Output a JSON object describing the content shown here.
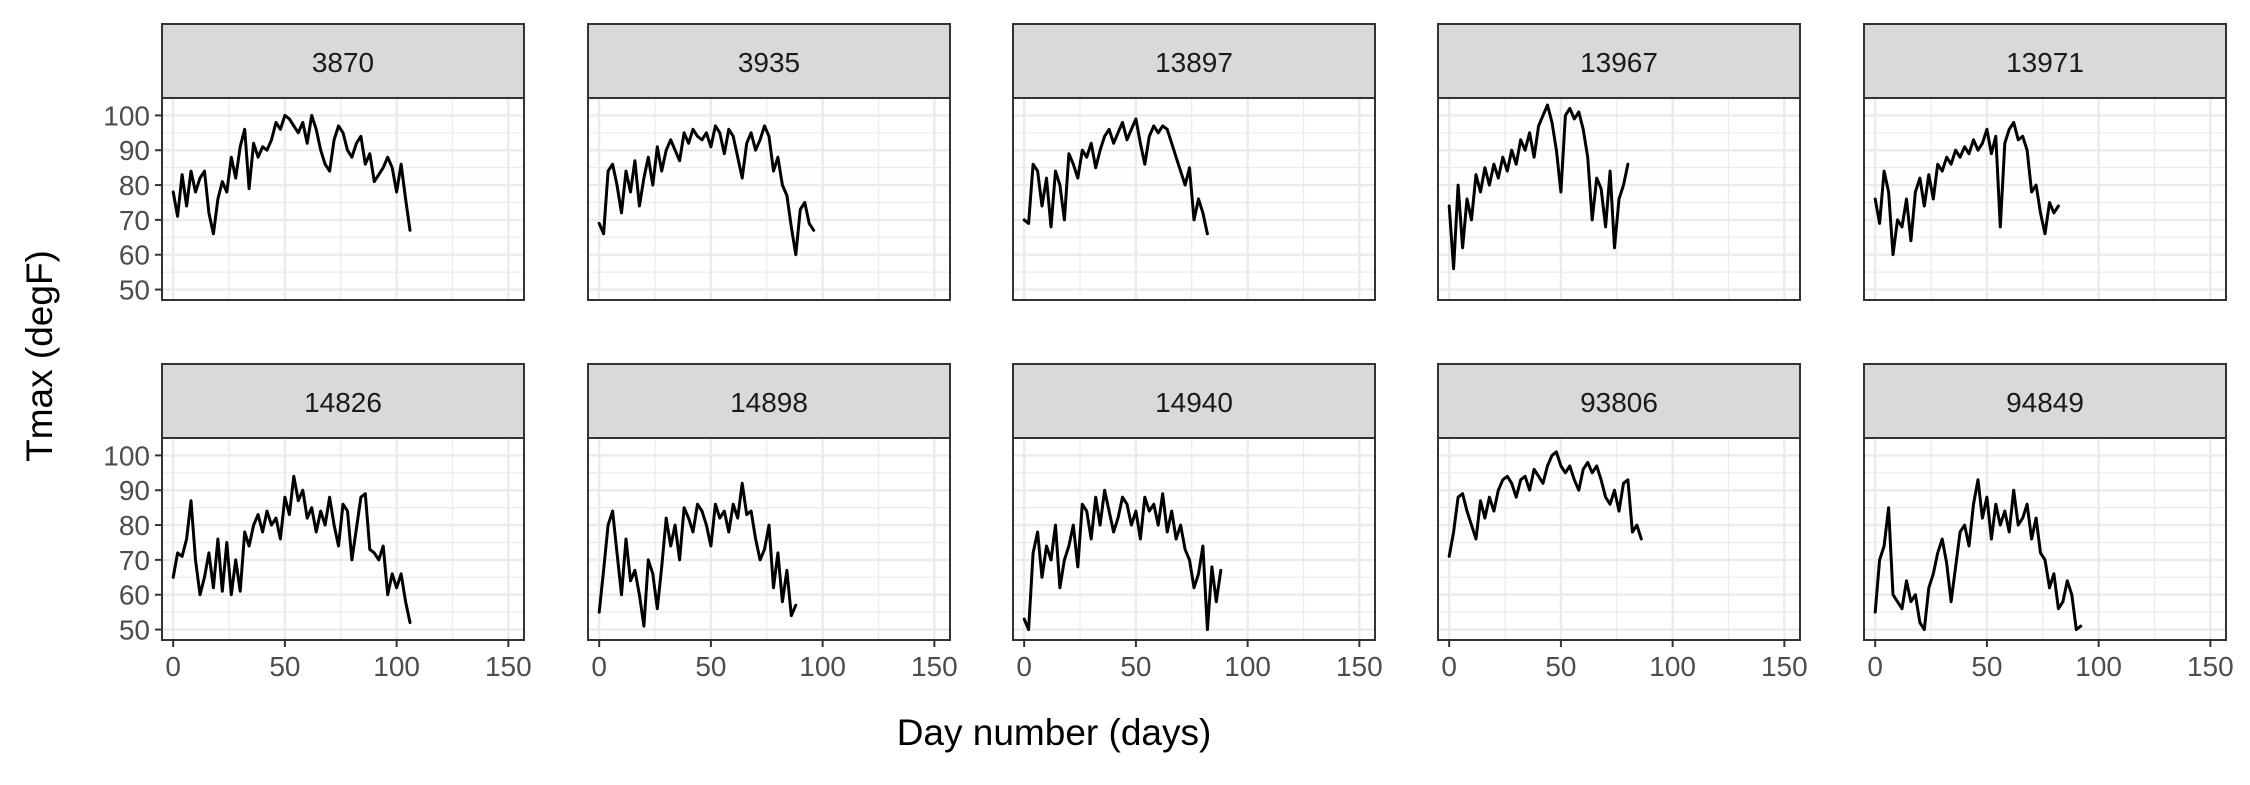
{
  "chart_data": {
    "type": "line",
    "xlabel": "Day number (days)",
    "ylabel": "Tmax (degF)",
    "xlim": [
      -5,
      157
    ],
    "ylim": [
      47,
      105
    ],
    "xticks": [
      0,
      50,
      100,
      150
    ],
    "yticks": [
      50,
      60,
      70,
      80,
      90,
      100
    ],
    "x_step_days": 2,
    "grid": true,
    "facet_rows": 2,
    "facet_cols": 5,
    "panels": [
      {
        "name": "3870",
        "values": [
          78,
          71,
          83,
          74,
          84,
          78,
          82,
          84,
          72,
          66,
          76,
          81,
          78,
          88,
          82,
          91,
          96,
          79,
          92,
          88,
          91,
          90,
          93,
          98,
          96,
          100,
          99,
          97,
          95,
          98,
          92,
          100,
          96,
          90,
          86,
          84,
          93,
          97,
          95,
          90,
          88,
          92,
          94,
          86,
          89,
          81,
          83,
          85,
          88,
          85,
          78,
          86,
          76,
          67
        ]
      },
      {
        "name": "3935",
        "values": [
          69,
          66,
          84,
          86,
          80,
          72,
          84,
          78,
          87,
          74,
          82,
          88,
          80,
          91,
          84,
          90,
          93,
          90,
          87,
          95,
          92,
          96,
          94,
          93,
          95,
          91,
          97,
          95,
          89,
          96,
          94,
          88,
          82,
          92,
          95,
          90,
          93,
          97,
          94,
          84,
          88,
          80,
          77,
          68,
          60,
          73,
          75,
          69,
          67
        ]
      },
      {
        "name": "13897",
        "values": [
          70,
          69,
          86,
          84,
          74,
          82,
          68,
          84,
          80,
          70,
          89,
          86,
          82,
          90,
          88,
          92,
          85,
          90,
          94,
          96,
          92,
          95,
          98,
          93,
          96,
          99,
          92,
          86,
          94,
          97,
          95,
          97,
          96,
          92,
          88,
          84,
          80,
          85,
          70,
          76,
          72,
          66
        ]
      },
      {
        "name": "13967",
        "values": [
          74,
          56,
          80,
          62,
          76,
          70,
          83,
          78,
          85,
          80,
          86,
          82,
          88,
          84,
          90,
          86,
          93,
          90,
          95,
          88,
          97,
          100,
          103,
          98,
          90,
          78,
          100,
          102,
          99,
          101,
          96,
          88,
          70,
          82,
          79,
          68,
          84,
          62,
          76,
          80,
          86
        ]
      },
      {
        "name": "13971",
        "values": [
          76,
          69,
          84,
          78,
          60,
          70,
          68,
          76,
          64,
          78,
          82,
          74,
          83,
          76,
          86,
          84,
          88,
          86,
          90,
          88,
          91,
          89,
          93,
          90,
          92,
          96,
          89,
          94,
          68,
          92,
          96,
          98,
          93,
          94,
          90,
          78,
          80,
          72,
          66,
          75,
          72,
          74
        ]
      },
      {
        "name": "14826",
        "values": [
          65,
          72,
          71,
          76,
          87,
          70,
          60,
          65,
          72,
          62,
          76,
          61,
          75,
          60,
          70,
          61,
          78,
          74,
          80,
          83,
          78,
          84,
          80,
          82,
          76,
          88,
          83,
          94,
          87,
          90,
          82,
          85,
          78,
          84,
          80,
          88,
          80,
          74,
          86,
          84,
          70,
          79,
          88,
          89,
          73,
          72,
          70,
          74,
          60,
          66,
          62,
          66,
          58,
          52
        ]
      },
      {
        "name": "14898",
        "values": [
          55,
          67,
          80,
          84,
          72,
          60,
          76,
          64,
          67,
          60,
          51,
          70,
          66,
          56,
          68,
          82,
          74,
          80,
          70,
          85,
          82,
          78,
          86,
          84,
          80,
          74,
          86,
          82,
          84,
          78,
          86,
          82,
          92,
          83,
          84,
          76,
          70,
          73,
          80,
          62,
          72,
          58,
          67,
          54,
          57
        ]
      },
      {
        "name": "14940",
        "values": [
          53,
          50,
          72,
          78,
          65,
          74,
          70,
          80,
          62,
          70,
          74,
          80,
          68,
          86,
          84,
          76,
          88,
          80,
          90,
          84,
          78,
          82,
          88,
          86,
          80,
          84,
          76,
          88,
          84,
          86,
          80,
          89,
          78,
          84,
          76,
          80,
          73,
          70,
          62,
          66,
          74,
          50,
          68,
          58,
          67
        ]
      },
      {
        "name": "93806",
        "values": [
          71,
          78,
          88,
          89,
          84,
          80,
          76,
          87,
          82,
          88,
          84,
          90,
          93,
          94,
          92,
          88,
          93,
          94,
          90,
          96,
          94,
          92,
          97,
          100,
          101,
          97,
          95,
          97,
          93,
          90,
          96,
          98,
          95,
          97,
          93,
          88,
          86,
          90,
          84,
          92,
          93,
          78,
          80,
          76
        ]
      },
      {
        "name": "94849",
        "values": [
          55,
          70,
          74,
          85,
          60,
          58,
          56,
          64,
          58,
          60,
          52,
          50,
          62,
          66,
          72,
          76,
          69,
          58,
          68,
          78,
          80,
          74,
          86,
          93,
          82,
          88,
          76,
          86,
          80,
          84,
          78,
          90,
          80,
          82,
          86,
          76,
          82,
          72,
          70,
          62,
          66,
          56,
          58,
          64,
          60,
          50,
          51
        ]
      }
    ]
  }
}
